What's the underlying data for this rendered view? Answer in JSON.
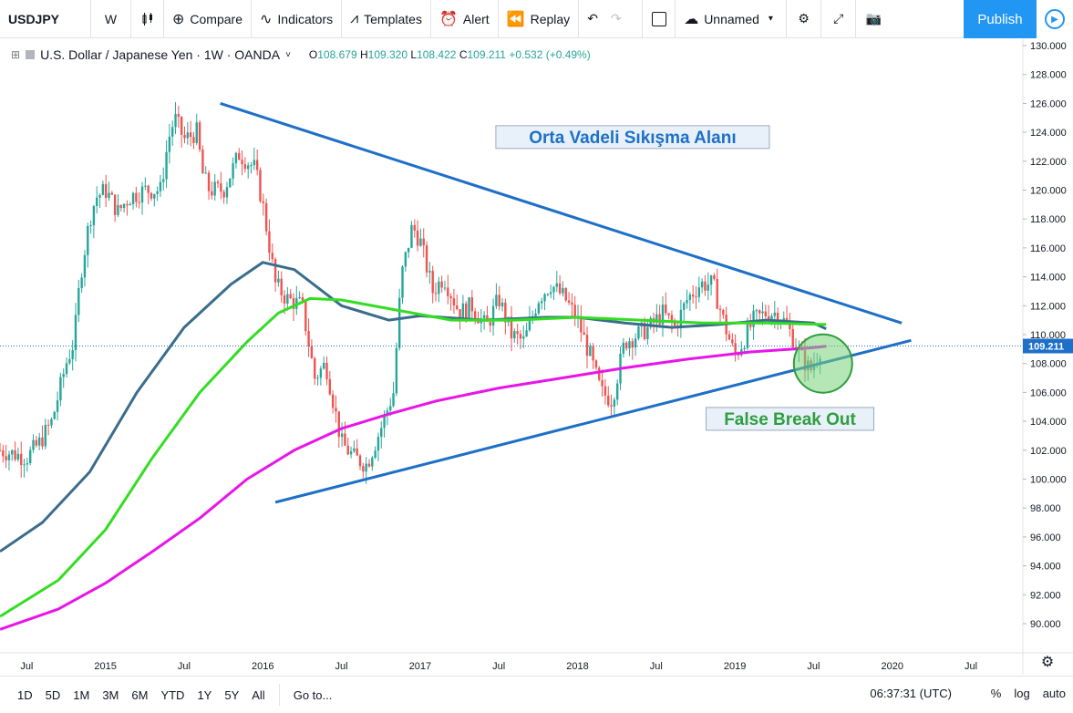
{
  "toolbar": {
    "symbol": "USDJPY",
    "interval": "W",
    "compare": "Compare",
    "indicators": "Indicators",
    "templates": "Templates",
    "alert": "Alert",
    "replay": "Replay",
    "layout_name": "Unnamed",
    "publish": "Publish"
  },
  "legend": {
    "title": "U.S. Dollar / Japanese Yen · 1W · OANDA",
    "open_label": "O",
    "open": "108.679",
    "high_label": "H",
    "high": "109.320",
    "low_label": "L",
    "low": "108.422",
    "close_label": "C",
    "close": "109.211",
    "change": "+0.532 (+0.49%)"
  },
  "bottombar": {
    "ranges": [
      "1D",
      "5D",
      "1M",
      "3M",
      "6M",
      "YTD",
      "1Y",
      "5Y",
      "All"
    ],
    "goto": "Go to...",
    "time": "06:37:31 (UTC)",
    "percent": "%",
    "log": "log",
    "auto": "auto"
  },
  "colors": {
    "up": "#26a69a",
    "down": "#ef5350",
    "trendline": "#1e6fc7",
    "ma_green": "#33dd22",
    "ma_magenta": "#e815e8",
    "ma_steel": "#3a6d8c",
    "accent": "#2196f3"
  },
  "chart_data": {
    "type": "candlestick",
    "symbol": "USDJPY",
    "y_axis": {
      "min": 90,
      "max": 130,
      "ticks": [
        "130.000",
        "128.000",
        "126.000",
        "124.000",
        "122.000",
        "120.000",
        "118.000",
        "116.000",
        "114.000",
        "112.000",
        "110.000",
        "108.000",
        "106.000",
        "104.000",
        "102.000",
        "100.000",
        "98.000",
        "96.000",
        "94.000",
        "92.000",
        "90.000"
      ]
    },
    "x_axis": {
      "start": 2014.33,
      "end": 2020.83,
      "ticks": [
        {
          "label": "Jul",
          "t": 2014.5
        },
        {
          "label": "2015",
          "t": 2015.0
        },
        {
          "label": "Jul",
          "t": 2015.5
        },
        {
          "label": "2016",
          "t": 2016.0
        },
        {
          "label": "Jul",
          "t": 2016.5
        },
        {
          "label": "2017",
          "t": 2017.0
        },
        {
          "label": "Jul",
          "t": 2017.5
        },
        {
          "label": "2018",
          "t": 2018.0
        },
        {
          "label": "Jul",
          "t": 2018.5
        },
        {
          "label": "2019",
          "t": 2019.0
        },
        {
          "label": "Jul",
          "t": 2019.5
        },
        {
          "label": "2020",
          "t": 2020.0
        },
        {
          "label": "Jul",
          "t": 2020.5
        }
      ]
    },
    "last_price": "109.211",
    "price_path": [
      [
        2014.33,
        102.0
      ],
      [
        2014.4,
        101.8
      ],
      [
        2014.5,
        101.5
      ],
      [
        2014.58,
        102.5
      ],
      [
        2014.66,
        104.0
      ],
      [
        2014.75,
        108.0
      ],
      [
        2014.8,
        109.5
      ],
      [
        2014.84,
        114.0
      ],
      [
        2014.9,
        118.0
      ],
      [
        2014.94,
        119.5
      ],
      [
        2015.0,
        120.0
      ],
      [
        2015.08,
        118.5
      ],
      [
        2015.15,
        119.5
      ],
      [
        2015.25,
        120.0
      ],
      [
        2015.35,
        120.0
      ],
      [
        2015.4,
        123.5
      ],
      [
        2015.44,
        125.0
      ],
      [
        2015.5,
        123.5
      ],
      [
        2015.58,
        124.0
      ],
      [
        2015.62,
        121.0
      ],
      [
        2015.66,
        120.0
      ],
      [
        2015.75,
        120.0
      ],
      [
        2015.85,
        122.5
      ],
      [
        2015.95,
        121.5
      ],
      [
        2016.0,
        119.0
      ],
      [
        2016.08,
        113.5
      ],
      [
        2016.15,
        112.5
      ],
      [
        2016.25,
        112.0
      ],
      [
        2016.33,
        107.0
      ],
      [
        2016.4,
        108.0
      ],
      [
        2016.5,
        102.5
      ],
      [
        2016.58,
        101.5
      ],
      [
        2016.66,
        101.0
      ],
      [
        2016.75,
        103.5
      ],
      [
        2016.83,
        106.0
      ],
      [
        2016.88,
        114.0
      ],
      [
        2016.95,
        117.5
      ],
      [
        2017.0,
        116.5
      ],
      [
        2017.08,
        113.0
      ],
      [
        2017.15,
        114.0
      ],
      [
        2017.25,
        111.5
      ],
      [
        2017.33,
        112.0
      ],
      [
        2017.42,
        110.5
      ],
      [
        2017.5,
        112.5
      ],
      [
        2017.58,
        110.0
      ],
      [
        2017.66,
        109.5
      ],
      [
        2017.75,
        112.5
      ],
      [
        2017.83,
        113.5
      ],
      [
        2017.92,
        112.5
      ],
      [
        2018.0,
        111.0
      ],
      [
        2018.08,
        108.5
      ],
      [
        2018.15,
        106.0
      ],
      [
        2018.22,
        105.5
      ],
      [
        2018.3,
        109.5
      ],
      [
        2018.38,
        110.0
      ],
      [
        2018.46,
        110.5
      ],
      [
        2018.54,
        111.5
      ],
      [
        2018.62,
        110.5
      ],
      [
        2018.7,
        112.5
      ],
      [
        2018.78,
        113.5
      ],
      [
        2018.86,
        113.5
      ],
      [
        2018.94,
        110.5
      ],
      [
        2019.0,
        108.5
      ],
      [
        2019.05,
        109.5
      ],
      [
        2019.12,
        111.0
      ],
      [
        2019.2,
        111.5
      ],
      [
        2019.28,
        111.5
      ],
      [
        2019.36,
        110.0
      ],
      [
        2019.42,
        108.5
      ],
      [
        2019.48,
        107.5
      ],
      [
        2019.52,
        108.5
      ],
      [
        2019.55,
        109.2
      ]
    ],
    "moving_averages": [
      {
        "color": "#3a6d8c",
        "points": [
          [
            2014.33,
            95.0
          ],
          [
            2014.6,
            97.0
          ],
          [
            2014.9,
            100.5
          ],
          [
            2015.2,
            106.0
          ],
          [
            2015.5,
            110.5
          ],
          [
            2015.8,
            113.5
          ],
          [
            2016.0,
            115.0
          ],
          [
            2016.2,
            114.5
          ],
          [
            2016.5,
            112.0
          ],
          [
            2016.8,
            111.0
          ],
          [
            2017.0,
            111.3
          ],
          [
            2017.4,
            111.0
          ],
          [
            2017.8,
            111.2
          ],
          [
            2018.0,
            111.2
          ],
          [
            2018.3,
            110.8
          ],
          [
            2018.6,
            110.5
          ],
          [
            2018.9,
            110.7
          ],
          [
            2019.2,
            111.0
          ],
          [
            2019.5,
            110.8
          ],
          [
            2019.58,
            110.4
          ]
        ]
      },
      {
        "color": "#33dd22",
        "points": [
          [
            2014.33,
            90.5
          ],
          [
            2014.7,
            93.0
          ],
          [
            2015.0,
            96.5
          ],
          [
            2015.3,
            101.5
          ],
          [
            2015.6,
            106.0
          ],
          [
            2015.9,
            109.5
          ],
          [
            2016.1,
            111.5
          ],
          [
            2016.3,
            112.5
          ],
          [
            2016.5,
            112.4
          ],
          [
            2016.8,
            111.8
          ],
          [
            2017.2,
            111.0
          ],
          [
            2017.6,
            111.0
          ],
          [
            2018.0,
            111.2
          ],
          [
            2018.4,
            111.0
          ],
          [
            2018.8,
            110.8
          ],
          [
            2019.2,
            110.8
          ],
          [
            2019.58,
            110.7
          ]
        ]
      },
      {
        "color": "#e815e8",
        "points": [
          [
            2014.33,
            89.6
          ],
          [
            2014.7,
            91.0
          ],
          [
            2015.0,
            92.8
          ],
          [
            2015.3,
            95.0
          ],
          [
            2015.6,
            97.3
          ],
          [
            2015.9,
            100.0
          ],
          [
            2016.2,
            102.0
          ],
          [
            2016.5,
            103.5
          ],
          [
            2016.8,
            104.5
          ],
          [
            2017.1,
            105.4
          ],
          [
            2017.5,
            106.3
          ],
          [
            2017.9,
            107.0
          ],
          [
            2018.3,
            107.7
          ],
          [
            2018.7,
            108.3
          ],
          [
            2019.1,
            108.8
          ],
          [
            2019.5,
            109.1
          ],
          [
            2019.58,
            109.2
          ]
        ]
      }
    ],
    "trendlines": [
      {
        "from": [
          2015.73,
          126.0
        ],
        "to": [
          2020.06,
          110.8
        ]
      },
      {
        "from": [
          2016.08,
          98.4
        ],
        "to": [
          2020.12,
          109.6
        ]
      }
    ],
    "annotations": [
      {
        "text": "Orta Vadeli Sıkışma Alanı",
        "t": 2018.35,
        "y": 123.7,
        "color": "#1e6fc7"
      },
      {
        "text": "False Break Out",
        "t": 2019.35,
        "y": 104.2,
        "color": "#2e9e3e"
      }
    ],
    "circle": {
      "t": 2019.56,
      "y": 108.0
    }
  }
}
